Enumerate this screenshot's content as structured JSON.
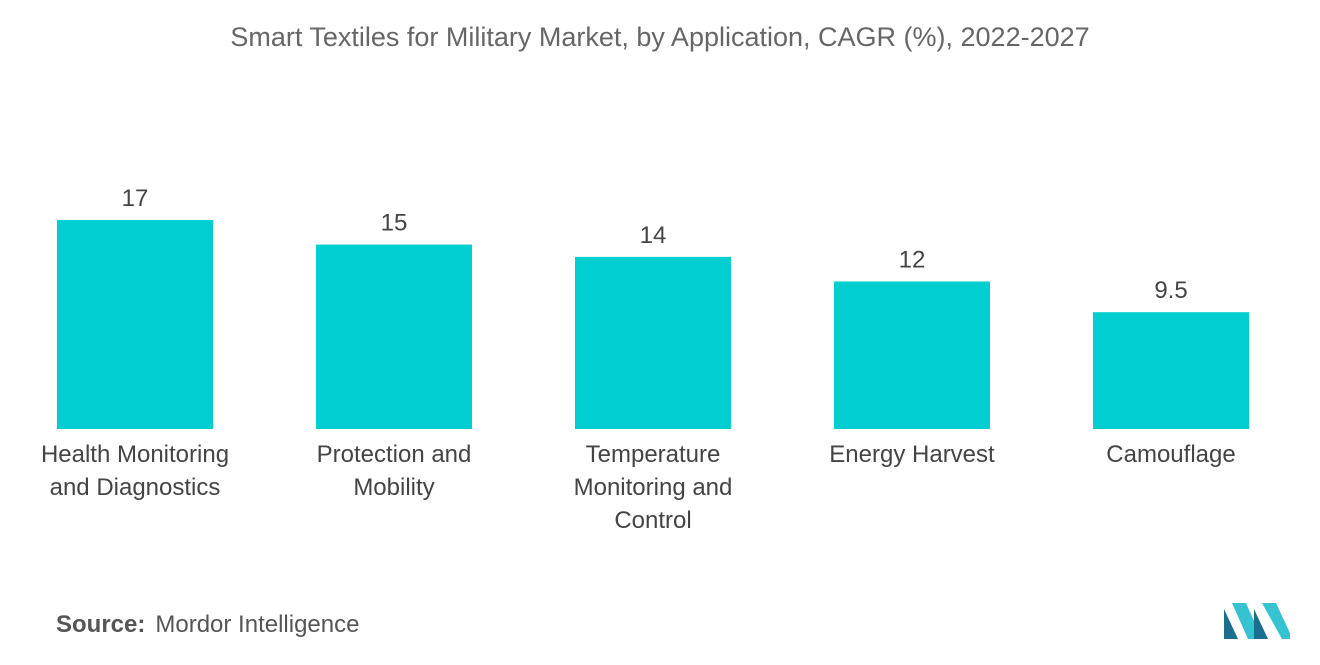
{
  "chart_data": {
    "type": "bar",
    "title": "Smart Textiles for Military Market, by Application, CAGR (%), 2022-2027",
    "categories": [
      "Health Monitoring and Diagnostics",
      "Protection and Mobility",
      "Temperature Monitoring and Control",
      "Energy Harvest",
      "Camouflage"
    ],
    "values": [
      17,
      15,
      14,
      12,
      9.5
    ],
    "value_labels": [
      "17",
      "15",
      "14",
      "12",
      "9.5"
    ],
    "xlabel": "",
    "ylabel": "",
    "ylim": [
      0,
      17
    ],
    "grid": false,
    "bar_color": "#00CED1"
  },
  "source": {
    "label": "Source:",
    "text": "Mordor Intelligence"
  },
  "colors": {
    "logo_dark": "#1B6E8E",
    "logo_light": "#35C3D2"
  }
}
